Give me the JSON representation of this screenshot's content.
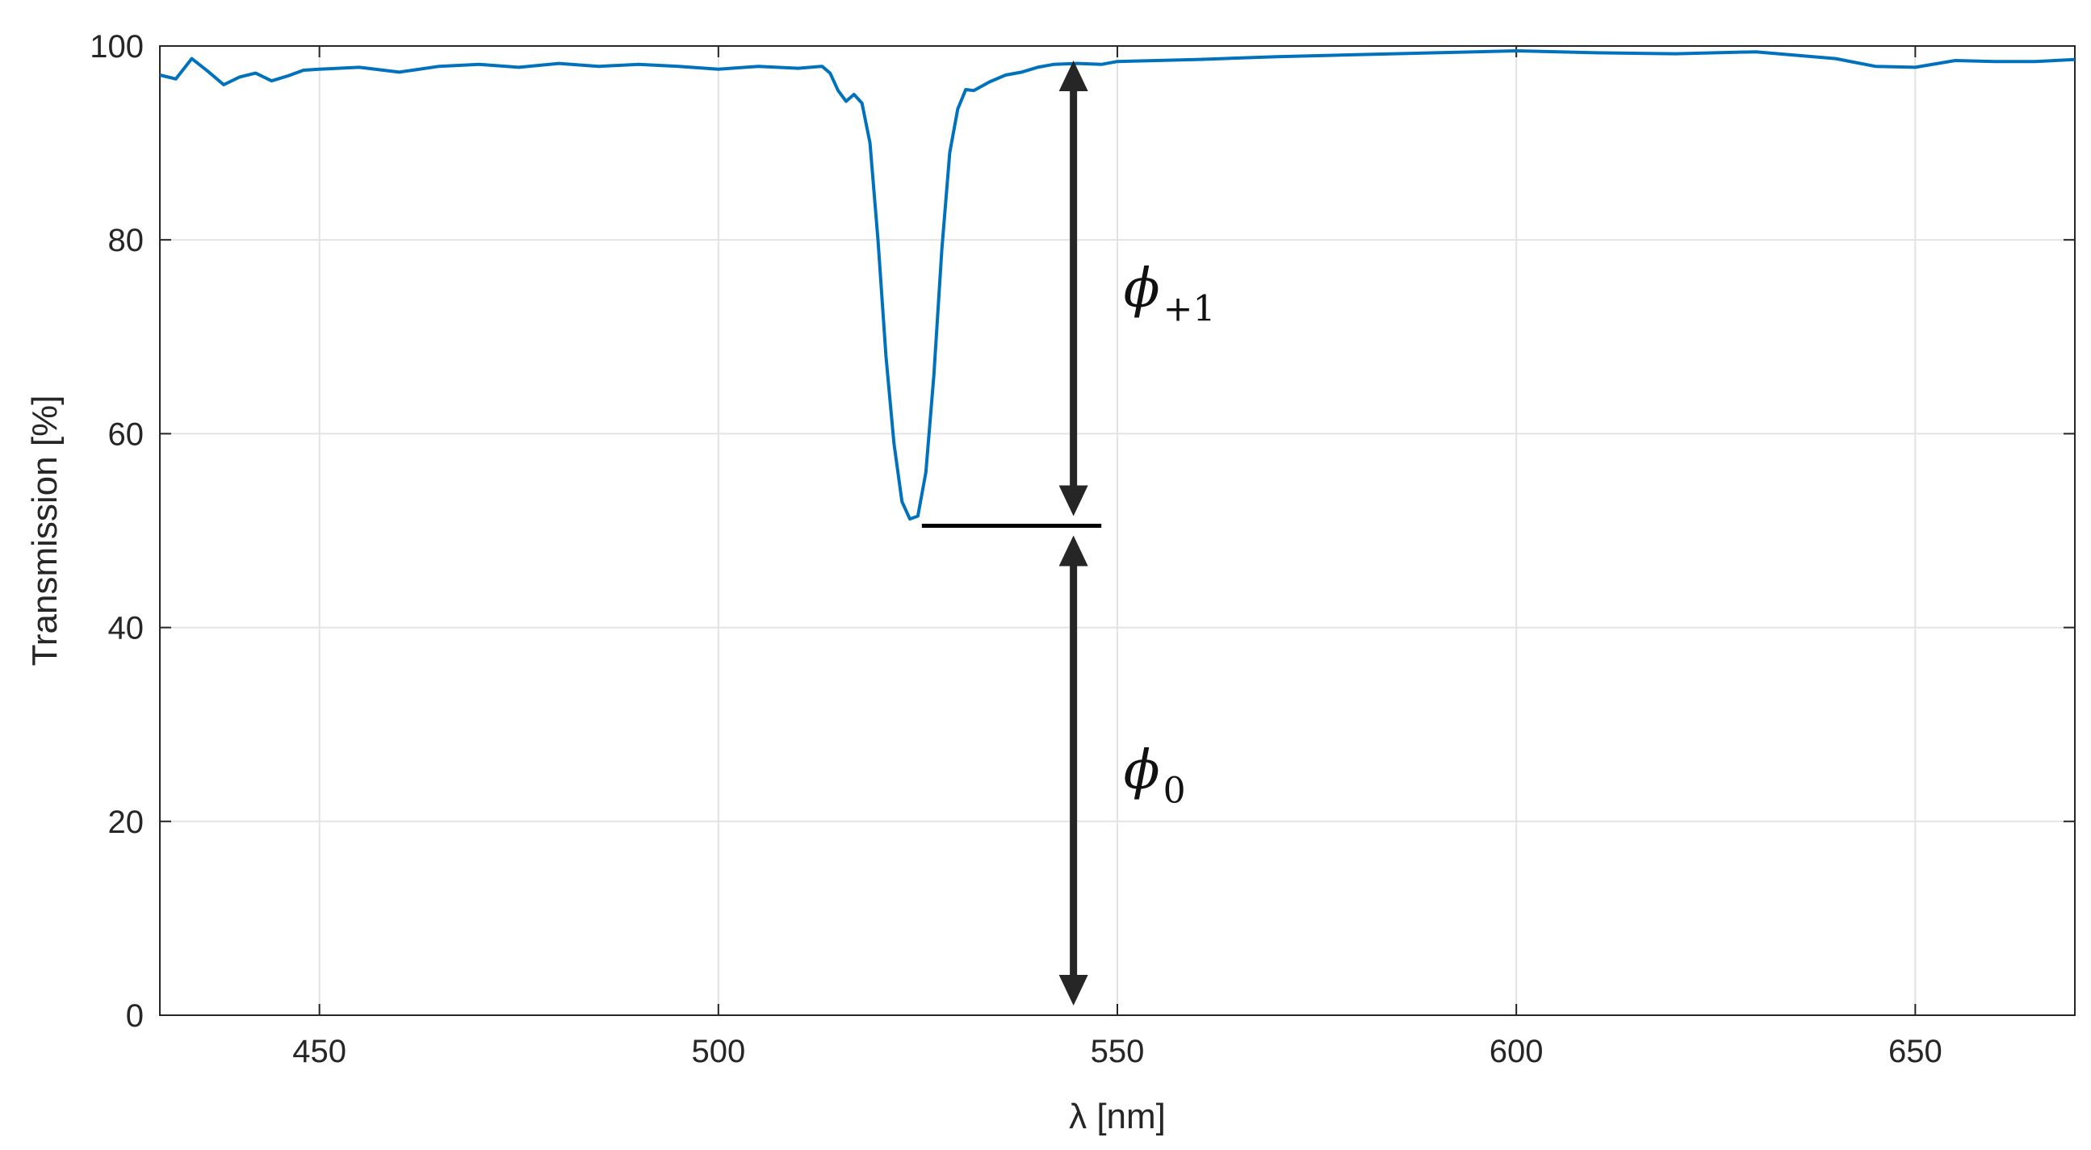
{
  "chart_data": {
    "type": "line",
    "title": "",
    "xlabel": "λ [nm]",
    "ylabel": "Transmission [%]",
    "xlim": [
      430,
      670
    ],
    "ylim": [
      0,
      100
    ],
    "x_ticks": [
      450,
      500,
      550,
      600,
      650
    ],
    "y_ticks": [
      0,
      20,
      40,
      60,
      80,
      100
    ],
    "grid": true,
    "series_color": "#0072BD",
    "series": [
      {
        "x": [
          430,
          432,
          434,
          436,
          438,
          440,
          442,
          444,
          446,
          448,
          450,
          455,
          460,
          465,
          470,
          475,
          480,
          485,
          490,
          495,
          500,
          505,
          510,
          513,
          514,
          515,
          516,
          517,
          518,
          519,
          520,
          521,
          522,
          523,
          524,
          525,
          526,
          527,
          528,
          529,
          530,
          531,
          532,
          534,
          536,
          538,
          540,
          542,
          545,
          548,
          550,
          560,
          570,
          580,
          590,
          600,
          610,
          620,
          630,
          640,
          645,
          650,
          655,
          660,
          665,
          670
        ],
        "y": [
          97,
          96.6,
          98.7,
          97.4,
          96,
          96.8,
          97.2,
          96.4,
          96.9,
          97.5,
          97.6,
          97.8,
          97.3,
          97.9,
          98.1,
          97.8,
          98.2,
          97.9,
          98.1,
          97.9,
          97.6,
          97.9,
          97.7,
          97.9,
          97.2,
          95.4,
          94.3,
          95,
          94.1,
          90,
          80,
          68,
          59,
          53,
          51.2,
          51.5,
          56,
          66,
          79,
          89,
          93.5,
          95.5,
          95.4,
          96.3,
          97,
          97.3,
          97.8,
          98.1,
          98.2,
          98.1,
          98.4,
          98.6,
          98.9,
          99.1,
          99.3,
          99.5,
          99.3,
          99.2,
          99.4,
          98.7,
          97.9,
          97.8,
          98.5,
          98.4,
          98.4,
          98.6
        ]
      }
    ],
    "annotations": [
      {
        "kind": "reference-line",
        "y": 50.5,
        "x_from": 525.5,
        "x_to": 548
      },
      {
        "kind": "double-arrow",
        "x": 544.5,
        "y_from": 51.5,
        "y_to": 98.5,
        "label": "ϕ",
        "subscript": "+1"
      },
      {
        "kind": "double-arrow",
        "x": 544.5,
        "y_from": 1,
        "y_to": 49.5,
        "label": "ϕ",
        "subscript": "0"
      }
    ]
  }
}
